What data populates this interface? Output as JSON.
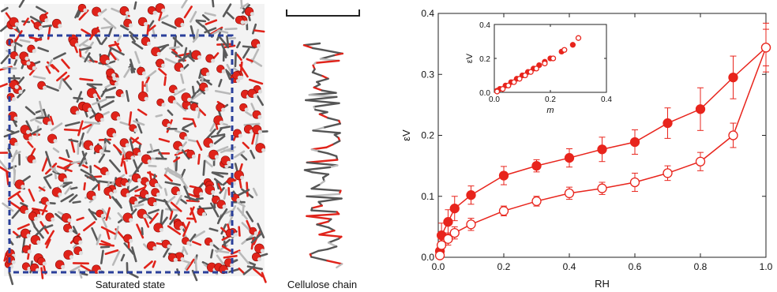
{
  "left_panel": {
    "saturated_label": "Saturated state",
    "cellulose_label": "Cellulose chain",
    "colors": {
      "oxygen": "#e0231a",
      "carbon": "#5a5a5a",
      "hydrogen": "#dddddd",
      "box": "#2a3f9a"
    }
  },
  "chart_data": [
    {
      "type": "line",
      "x_label": "RH",
      "y_label": "εV",
      "xlim": [
        0,
        1.0
      ],
      "ylim": [
        0,
        0.4
      ],
      "x_ticks": [
        "0.0",
        "0.2",
        "0.4",
        "0.6",
        "0.8",
        "1.0"
      ],
      "y_ticks": [
        "0.0",
        "0.1",
        "0.2",
        "0.3",
        "0.4"
      ],
      "grid": false,
      "series": [
        {
          "marker": "filled-circle",
          "color": "#e8241c",
          "x": [
            0.005,
            0.01,
            0.03,
            0.05,
            0.1,
            0.2,
            0.3,
            0.4,
            0.5,
            0.6,
            0.7,
            0.8,
            0.9,
            1.0
          ],
          "y": [
            0.01,
            0.036,
            0.058,
            0.08,
            0.102,
            0.134,
            0.15,
            0.163,
            0.177,
            0.189,
            0.22,
            0.243,
            0.295,
            0.344
          ],
          "err": [
            0.005,
            0.02,
            0.02,
            0.02,
            0.015,
            0.015,
            0.01,
            0.015,
            0.02,
            0.02,
            0.025,
            0.035,
            0.035,
            0.04
          ]
        },
        {
          "marker": "open-circle",
          "color": "#e8241c",
          "x": [
            0.005,
            0.01,
            0.03,
            0.05,
            0.1,
            0.2,
            0.3,
            0.4,
            0.5,
            0.6,
            0.7,
            0.8,
            0.9,
            1.0
          ],
          "y": [
            0.003,
            0.02,
            0.03,
            0.04,
            0.054,
            0.076,
            0.092,
            0.105,
            0.113,
            0.123,
            0.138,
            0.157,
            0.2,
            0.344
          ],
          "err": [
            0.005,
            0.01,
            0.01,
            0.01,
            0.01,
            0.008,
            0.008,
            0.01,
            0.01,
            0.015,
            0.012,
            0.015,
            0.02,
            0.03
          ]
        }
      ]
    },
    {
      "type": "scatter",
      "x_label": "m",
      "y_label": "εV",
      "xlim": [
        0,
        0.4
      ],
      "ylim": [
        0,
        0.4
      ],
      "x_ticks": [
        "0.0",
        "0.2",
        "0.4"
      ],
      "y_ticks": [
        "0.0",
        "0.2",
        "0.4"
      ],
      "series": [
        {
          "marker": "filled-circle",
          "color": "#e8241c",
          "x": [
            0.01,
            0.02,
            0.04,
            0.06,
            0.08,
            0.1,
            0.12,
            0.14,
            0.16,
            0.18,
            0.2,
            0.24,
            0.28
          ],
          "y": [
            0.01,
            0.02,
            0.04,
            0.06,
            0.08,
            0.1,
            0.12,
            0.14,
            0.16,
            0.18,
            0.2,
            0.24,
            0.28
          ]
        },
        {
          "marker": "open-circle",
          "color": "#e8241c",
          "x": [
            0.01,
            0.03,
            0.05,
            0.07,
            0.09,
            0.11,
            0.13,
            0.15,
            0.18,
            0.21,
            0.25,
            0.3
          ],
          "y": [
            0.005,
            0.02,
            0.04,
            0.06,
            0.08,
            0.1,
            0.12,
            0.14,
            0.17,
            0.2,
            0.25,
            0.32
          ]
        }
      ]
    }
  ]
}
